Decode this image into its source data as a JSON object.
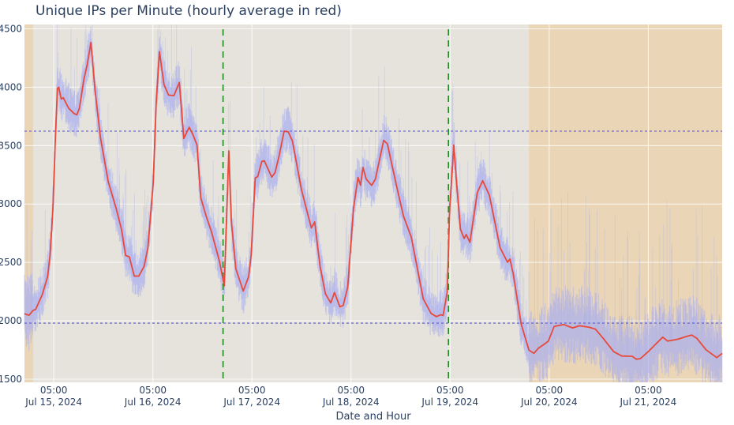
{
  "chart_data": {
    "type": "line",
    "title": "Unique IPs per Minute (hourly average in red)",
    "xlabel": "Date and Hour",
    "ylabel": "",
    "x_unit": "hours from Jul 15, 2024 00:00",
    "xlim": [
      -2.1,
      166.9
    ],
    "ylim": [
      1473,
      4537
    ],
    "grid": true,
    "y_ticks": [
      1500,
      2000,
      2500,
      3000,
      3500,
      4000,
      4500
    ],
    "x_ticks": [
      {
        "x": 5,
        "time": "05:00",
        "date": "Jul 15, 2024"
      },
      {
        "x": 29,
        "time": "05:00",
        "date": "Jul 16, 2024"
      },
      {
        "x": 53,
        "time": "05:00",
        "date": "Jul 17, 2024"
      },
      {
        "x": 77,
        "time": "05:00",
        "date": "Jul 18, 2024"
      },
      {
        "x": 101,
        "time": "05:00",
        "date": "Jul 19, 2024"
      },
      {
        "x": 125,
        "time": "05:00",
        "date": "Jul 20, 2024"
      },
      {
        "x": 149,
        "time": "05:00",
        "date": "Jul 21, 2024"
      }
    ],
    "shaded_regions": [
      {
        "x0": -2.1,
        "x1": 0.0,
        "color": "#ead6b6"
      },
      {
        "x0": 120.1,
        "x1": 166.9,
        "color": "#ead6b6"
      }
    ],
    "vertical_lines": [
      {
        "x": 46.0,
        "color": "#1f8a1f",
        "style": "dashed"
      },
      {
        "x": 100.6,
        "color": "#1f8a1f",
        "style": "dashed"
      }
    ],
    "horizontal_lines": [
      {
        "y": 3624,
        "color": "#6b6bf0",
        "style": "dotted"
      },
      {
        "y": 1980,
        "color": "#6b6bf0",
        "style": "dotted"
      }
    ],
    "colors": {
      "plot_bg": "#e5e3dc",
      "hourly": "#e8493a",
      "per_minute": "#a9aef0",
      "grid": "#ffffff",
      "text": "#2a3f5f"
    },
    "series": [
      {
        "name": "hourly average",
        "x": [
          -2.1,
          -1.0,
          0.0,
          0.6,
          2.2,
          3.5,
          4.1,
          4.8,
          5.4,
          5.9,
          6.2,
          6.8,
          7.3,
          8.6,
          9.9,
          10.6,
          11.2,
          12.3,
          13.1,
          14.0,
          15.0,
          16.3,
          18.2,
          20.1,
          21.4,
          22.4,
          23.3,
          24.5,
          25.6,
          26.9,
          27.8,
          29.1,
          29.8,
          30.6,
          31.7,
          32.8,
          34.1,
          35.4,
          36.5,
          37.8,
          38.7,
          39.7,
          40.6,
          41.9,
          43.2,
          45.1,
          46.3,
          47.1,
          47.4,
          48.0,
          49.1,
          50.9,
          52.2,
          52.8,
          53.8,
          54.4,
          55.4,
          56.0,
          57.8,
          58.6,
          59.6,
          60.8,
          61.8,
          62.8,
          65.0,
          66.3,
          67.4,
          68.2,
          69.5,
          70.8,
          72.1,
          73.0,
          74.3,
          75.1,
          76.2,
          77.6,
          78.7,
          79.3,
          79.9,
          80.7,
          82.0,
          82.9,
          84.9,
          85.8,
          88.1,
          89.7,
          91.6,
          94.5,
          96.4,
          97.7,
          98.7,
          99.3,
          100.3,
          100.9,
          101.9,
          102.5,
          103.5,
          104.4,
          104.9,
          105.8,
          107.6,
          108.9,
          110.5,
          113.1,
          114.9,
          115.5,
          116.3,
          118.2,
          120.1,
          121.3,
          122.4,
          123.7,
          124.8,
          126.2,
          128.5,
          130.7,
          132.3,
          134.6,
          136.2,
          138.1,
          140.6,
          142.6,
          145.1,
          146.1,
          147.1,
          149.0,
          150.9,
          152.5,
          153.7,
          156.2,
          158.2,
          159.5,
          160.8,
          163.0,
          165.6,
          166.9
        ],
        "values": [
          2061,
          2047,
          2090,
          2097,
          2223,
          2378,
          2560,
          2966,
          3574,
          3989,
          4000,
          3899,
          3910,
          3820,
          3775,
          3764,
          3820,
          4068,
          4192,
          4383,
          3977,
          3572,
          3189,
          2964,
          2784,
          2559,
          2547,
          2383,
          2383,
          2468,
          2626,
          3189,
          3865,
          4304,
          4022,
          3932,
          3928,
          4041,
          3561,
          3657,
          3595,
          3505,
          3054,
          2897,
          2761,
          2514,
          2300,
          3144,
          3455,
          2851,
          2446,
          2255,
          2378,
          2559,
          3223,
          3234,
          3365,
          3370,
          3230,
          3268,
          3414,
          3624,
          3618,
          3539,
          3122,
          2942,
          2795,
          2847,
          2468,
          2232,
          2153,
          2243,
          2120,
          2131,
          2288,
          2964,
          3228,
          3160,
          3313,
          3212,
          3160,
          3212,
          3545,
          3516,
          3144,
          2897,
          2716,
          2187,
          2063,
          2036,
          2052,
          2045,
          2243,
          2964,
          3505,
          3212,
          2784,
          2705,
          2739,
          2671,
          3099,
          3200,
          3076,
          2626,
          2502,
          2529,
          2401,
          1973,
          1748,
          1721,
          1766,
          1797,
          1826,
          1951,
          1968,
          1939,
          1957,
          1946,
          1928,
          1849,
          1736,
          1698,
          1696,
          1671,
          1676,
          1736,
          1804,
          1860,
          1826,
          1842,
          1865,
          1878,
          1849,
          1752,
          1685,
          1721
        ]
      },
      {
        "name": "per minute",
        "derived_from": "hourly average with per-minute variation"
      }
    ]
  }
}
